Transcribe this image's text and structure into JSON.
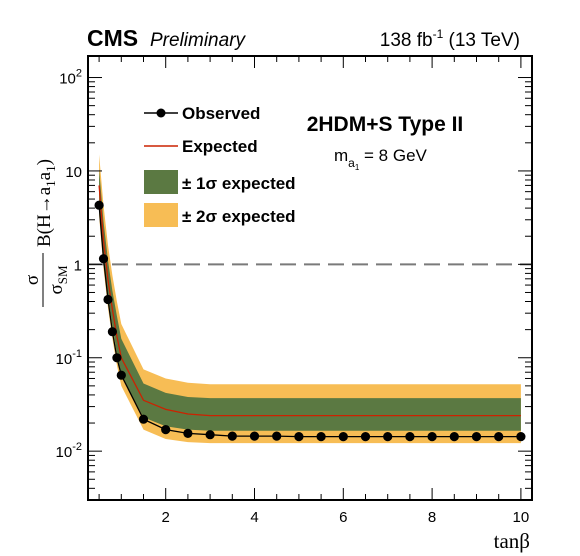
{
  "header": {
    "experiment": "CMS",
    "status": "Preliminary",
    "lumi": "138 fb",
    "lumi_exp": "-1",
    "energy": " (13 TeV)"
  },
  "model": {
    "name": "2HDM+S Type II",
    "mass_label": "m",
    "mass_sub": "a",
    "mass_subsub": "1",
    "mass_value": " = 8 GeV"
  },
  "colors": {
    "observed": "#000000",
    "expected": "#cc2200",
    "band1": "#5b7942",
    "band2": "#f7bd55",
    "reference": "#7a7a7a"
  },
  "chart_data": {
    "type": "line",
    "xlabel": "tanβ",
    "ylabel": "σ/σSM B(H→a1a1)",
    "xlim": [
      0.25,
      10.25
    ],
    "ylim": [
      0.003,
      170
    ],
    "ylog": true,
    "xticks": [
      2,
      4,
      6,
      8,
      10
    ],
    "yticks": [
      {
        "value": 0.01,
        "base": "10",
        "exp": "-2"
      },
      {
        "value": 0.1,
        "base": "10",
        "exp": "-1"
      },
      {
        "value": 1,
        "base": "1",
        "exp": ""
      },
      {
        "value": 10,
        "base": "10",
        "exp": ""
      },
      {
        "value": 100,
        "base": "10",
        "exp": "2"
      }
    ],
    "reference_line": 1,
    "legend": {
      "placement": "top-left",
      "observed": "Observed",
      "expected": "Expected",
      "band1": "± 1σ expected",
      "band2": "± 2σ expected"
    },
    "x": [
      0.5,
      0.6,
      0.7,
      0.8,
      0.9,
      1.0,
      1.5,
      2.0,
      2.5,
      3.0,
      3.5,
      4.0,
      4.5,
      5.0,
      5.5,
      6.0,
      6.5,
      7.0,
      7.5,
      8.0,
      8.5,
      9.0,
      9.5,
      10.0
    ],
    "observed": [
      4.3,
      1.15,
      0.42,
      0.19,
      0.1,
      0.065,
      0.022,
      0.017,
      0.0155,
      0.015,
      0.0145,
      0.0145,
      0.0145,
      0.0143,
      0.0143,
      0.0143,
      0.0143,
      0.0143,
      0.0143,
      0.0143,
      0.0143,
      0.0143,
      0.0143,
      0.0143
    ],
    "expected": [
      7.0,
      1.8,
      0.68,
      0.33,
      0.17,
      0.1,
      0.035,
      0.028,
      0.025,
      0.024,
      0.024,
      0.024,
      0.024,
      0.024,
      0.024,
      0.024,
      0.024,
      0.024,
      0.024,
      0.024,
      0.024,
      0.024,
      0.024,
      0.024
    ],
    "band1_low": [
      4.5,
      1.2,
      0.46,
      0.22,
      0.11,
      0.066,
      0.023,
      0.0185,
      0.017,
      0.0165,
      0.0165,
      0.0165,
      0.0165,
      0.0165,
      0.0165,
      0.0165,
      0.0165,
      0.0165,
      0.0165,
      0.0165,
      0.0165,
      0.0165,
      0.0165,
      0.0165
    ],
    "band1_high": [
      10.5,
      2.9,
      1.1,
      0.52,
      0.28,
      0.16,
      0.053,
      0.042,
      0.038,
      0.037,
      0.037,
      0.037,
      0.037,
      0.037,
      0.037,
      0.037,
      0.037,
      0.037,
      0.037,
      0.037,
      0.037,
      0.037,
      0.037,
      0.037
    ],
    "band2_low": [
      3.3,
      0.9,
      0.34,
      0.16,
      0.083,
      0.05,
      0.017,
      0.0135,
      0.0125,
      0.0122,
      0.0122,
      0.0122,
      0.0122,
      0.0122,
      0.0122,
      0.0122,
      0.0122,
      0.0122,
      0.0122,
      0.0122,
      0.0122,
      0.0122,
      0.0122,
      0.0122
    ],
    "band2_high": [
      15.0,
      4.3,
      1.6,
      0.76,
      0.4,
      0.23,
      0.075,
      0.06,
      0.054,
      0.052,
      0.052,
      0.052,
      0.052,
      0.052,
      0.052,
      0.052,
      0.052,
      0.052,
      0.052,
      0.052,
      0.052,
      0.052,
      0.052,
      0.052
    ]
  }
}
